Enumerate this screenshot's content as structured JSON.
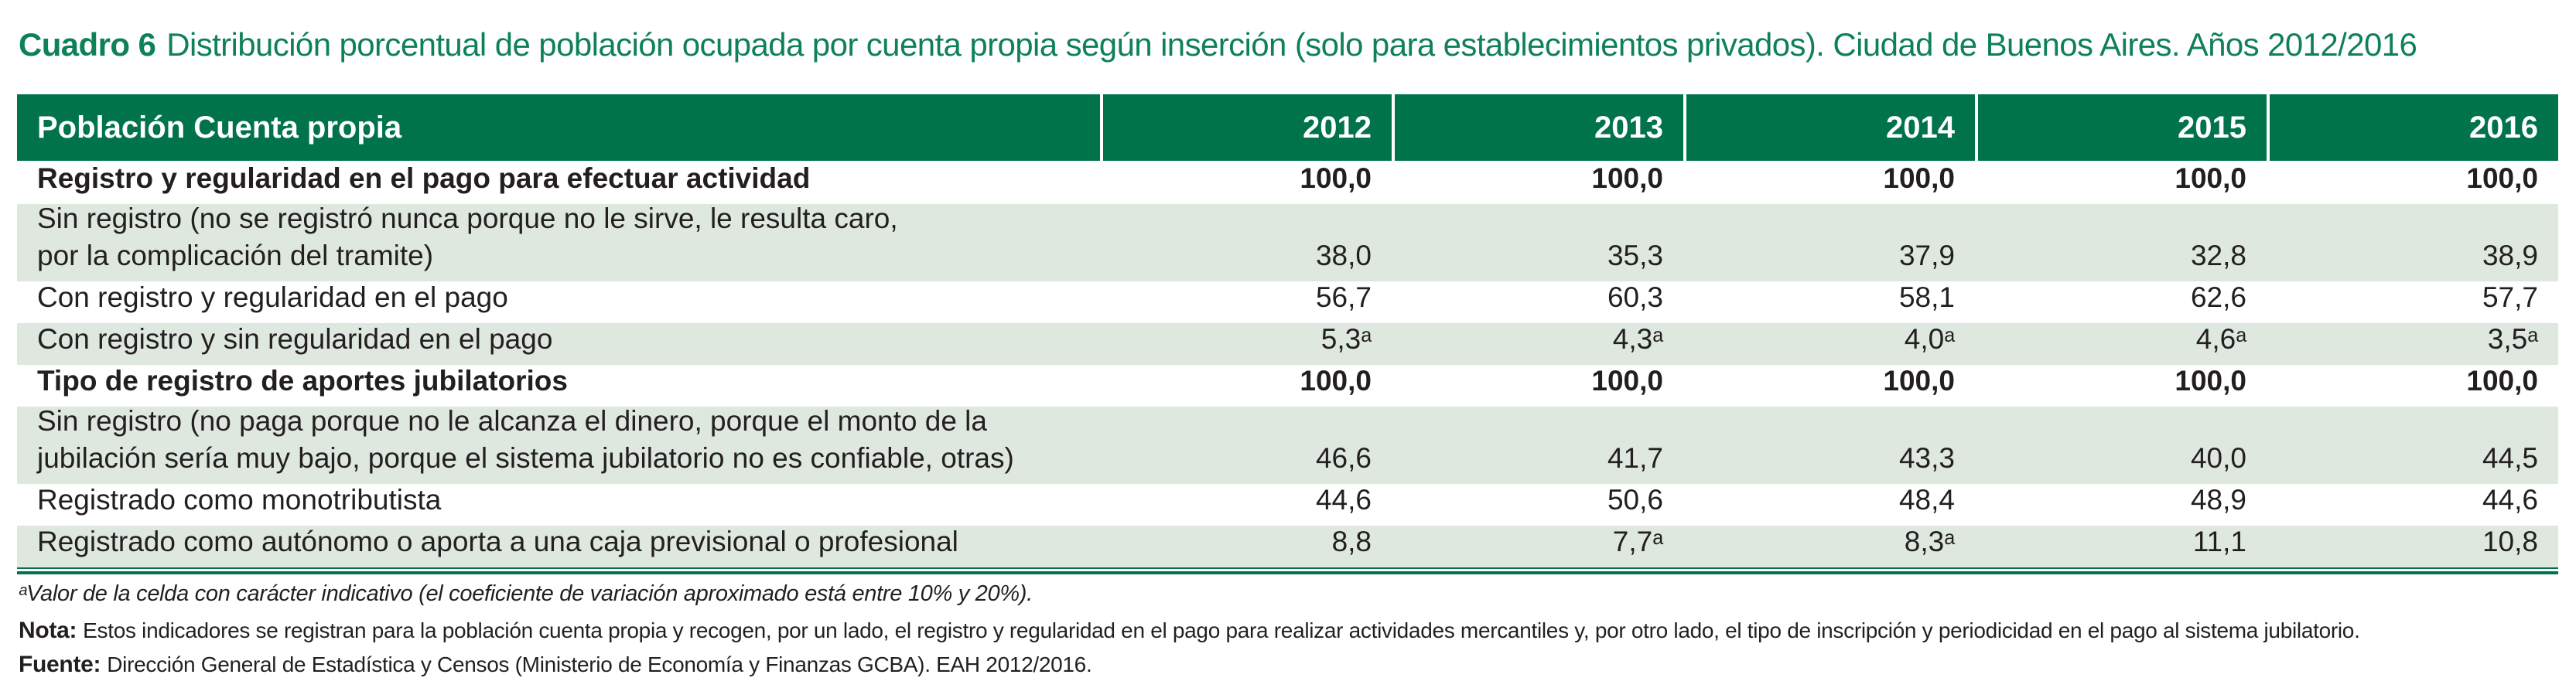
{
  "title": {
    "label": "Cuadro 6",
    "text": "Distribución porcentual de población ocupada por cuenta propia según inserción (solo para establecimientos privados). Ciudad de Buenos Aires. Años 2012/2016"
  },
  "colors": {
    "header_green": "#00734b",
    "title_green": "#0f8157",
    "row_alt_green": "#dee8de",
    "text": "#231f20"
  },
  "table": {
    "header": {
      "label": "Población Cuenta propia",
      "years": [
        "2012",
        "2013",
        "2014",
        "2015",
        "2016"
      ]
    },
    "rows": [
      {
        "label": "Registro y regularidad en el pago para efectuar actividad",
        "bold": true,
        "values": [
          "100,0",
          "100,0",
          "100,0",
          "100,0",
          "100,0"
        ]
      },
      {
        "label": "Sin registro (no se registró nunca porque no le sirve, le resulta caro,",
        "label2": "por la complicación del tramite)",
        "values": [
          "38,0",
          "35,3",
          "37,9",
          "32,8",
          "38,9"
        ]
      },
      {
        "label": "Con registro y regularidad en el pago",
        "values": [
          "56,7",
          "60,3",
          "58,1",
          "62,6",
          "57,7"
        ]
      },
      {
        "label": "Con registro y sin regularidad en el pago",
        "values": [
          "5,3ᵃ",
          "4,3ᵃ",
          "4,0ᵃ",
          "4,6ᵃ",
          "3,5ᵃ"
        ]
      },
      {
        "label": "Tipo de registro de aportes jubilatorios",
        "bold": true,
        "values": [
          "100,0",
          "100,0",
          "100,0",
          "100,0",
          "100,0"
        ]
      },
      {
        "label": "Sin registro (no paga porque no le alcanza el dinero, porque el monto de la",
        "label2": "jubilación sería muy bajo, porque el sistema jubilatorio no es confiable, otras)",
        "values": [
          "46,6",
          "41,7",
          "43,3",
          "40,0",
          "44,5"
        ]
      },
      {
        "label": "Registrado como monotributista",
        "values": [
          "44,6",
          "50,6",
          "48,4",
          "48,9",
          "44,6"
        ]
      },
      {
        "label": "Registrado como autónomo o aporta a una caja previsional o profesional",
        "values": [
          "8,8",
          "7,7ᵃ",
          "8,3ᵃ",
          "11,1",
          "10,8"
        ]
      }
    ]
  },
  "footnotes": {
    "a_note": "ᵃValor de la celda con carácter indicativo (el coeficiente de variación aproximado está entre 10% y 20%).",
    "nota_label": "Nota:",
    "nota_text": "Estos indicadores se registran para la población cuenta propia y recogen, por un lado, el registro y regularidad en el pago para realizar actividades mercantiles y, por otro lado, el tipo de inscripción y periodicidad en el pago al sistema jubilatorio.",
    "fuente_label": "Fuente:",
    "fuente_text": "Dirección General de Estadística y Censos (Ministerio de Economía y Finanzas GCBA). EAH 2012/2016."
  }
}
